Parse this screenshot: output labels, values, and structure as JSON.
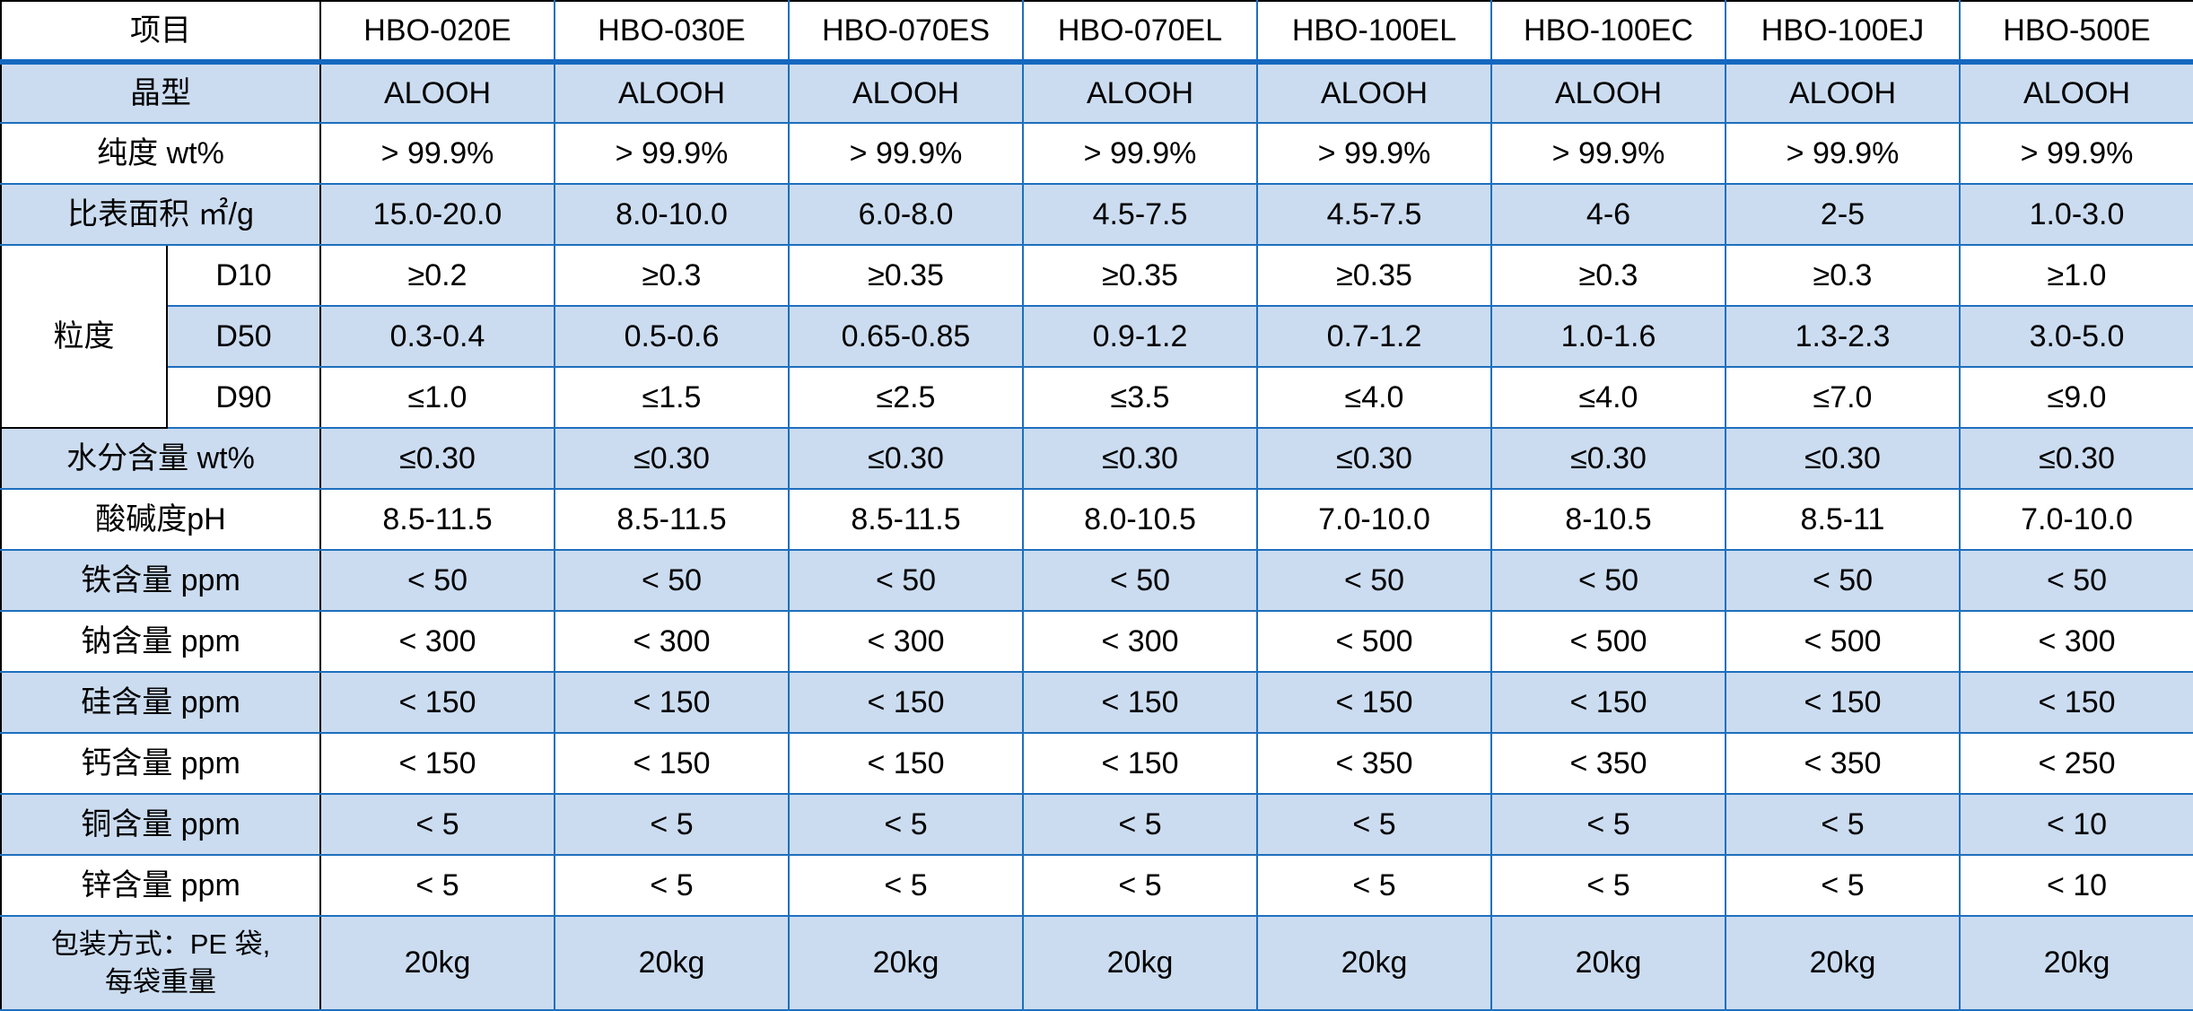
{
  "table": {
    "header": {
      "item_label": "项目",
      "columns": [
        "HBO-020E",
        "HBO-030E",
        "HBO-070ES",
        "HBO-070EL",
        "HBO-100EL",
        "HBO-100EC",
        "HBO-100EJ",
        "HBO-500E"
      ]
    },
    "rows": [
      {
        "label": "晶型",
        "values": [
          "ALOOH",
          "ALOOH",
          "ALOOH",
          "ALOOH",
          "ALOOH",
          "ALOOH",
          "ALOOH",
          "ALOOH"
        ]
      },
      {
        "label": "纯度 wt%",
        "values": [
          "> 99.9%",
          "> 99.9%",
          "> 99.9%",
          "> 99.9%",
          "> 99.9%",
          "> 99.9%",
          "> 99.9%",
          "> 99.9%"
        ]
      },
      {
        "label": "比表面积 ㎡/g",
        "values": [
          "15.0-20.0",
          "8.0-10.0",
          "6.0-8.0",
          "4.5-7.5",
          "4.5-7.5",
          "4-6",
          "2-5",
          "1.0-3.0"
        ]
      },
      {
        "group_label": "粒度",
        "sub_label": "D10",
        "values": [
          "≥0.2",
          "≥0.3",
          "≥0.35",
          "≥0.35",
          "≥0.35",
          "≥0.3",
          "≥0.3",
          "≥1.0"
        ]
      },
      {
        "sub_label": "D50",
        "values": [
          "0.3-0.4",
          "0.5-0.6",
          "0.65-0.85",
          "0.9-1.2",
          "0.7-1.2",
          "1.0-1.6",
          "1.3-2.3",
          "3.0-5.0"
        ]
      },
      {
        "sub_label": "D90",
        "values": [
          "≤1.0",
          "≤1.5",
          "≤2.5",
          "≤3.5",
          "≤4.0",
          "≤4.0",
          "≤7.0",
          "≤9.0"
        ]
      },
      {
        "label": "水分含量 wt%",
        "values": [
          "≤0.30",
          "≤0.30",
          "≤0.30",
          "≤0.30",
          "≤0.30",
          "≤0.30",
          "≤0.30",
          "≤0.30"
        ]
      },
      {
        "label": "酸碱度pH",
        "values": [
          "8.5-11.5",
          "8.5-11.5",
          "8.5-11.5",
          "8.0-10.5",
          "7.0-10.0",
          "8-10.5",
          "8.5-11",
          "7.0-10.0"
        ]
      },
      {
        "label": "铁含量 ppm",
        "values": [
          "< 50",
          "< 50",
          "< 50",
          "< 50",
          "< 50",
          "< 50",
          "< 50",
          "< 50"
        ]
      },
      {
        "label": "钠含量 ppm",
        "values": [
          "< 300",
          "< 300",
          "< 300",
          "< 300",
          "< 500",
          "< 500",
          "< 500",
          "< 300"
        ]
      },
      {
        "label": "硅含量 ppm",
        "values": [
          "< 150",
          "< 150",
          "< 150",
          "< 150",
          "< 150",
          "< 150",
          "< 150",
          "< 150"
        ]
      },
      {
        "label": "钙含量 ppm",
        "values": [
          "< 150",
          "< 150",
          "< 150",
          "< 150",
          "< 350",
          "< 350",
          "< 350",
          "< 250"
        ]
      },
      {
        "label": "铜含量 ppm",
        "values": [
          "< 5",
          "< 5",
          "< 5",
          "< 5",
          "< 5",
          "< 5",
          "< 5",
          "< 10"
        ]
      },
      {
        "label": "锌含量 ppm",
        "values": [
          "< 5",
          "< 5",
          "< 5",
          "< 5",
          "< 5",
          "< 5",
          "< 5",
          "< 10"
        ]
      },
      {
        "label": "包装方式：PE 袋,\n每袋重量",
        "values": [
          "20kg",
          "20kg",
          "20kg",
          "20kg",
          "20kg",
          "20kg",
          "20kg",
          "20kg"
        ]
      }
    ],
    "colors": {
      "row_fill": "#cbdcf0",
      "grid_blue": "#1e6fbe",
      "header_rule_blue": "#1568c0",
      "grid_black": "#000000",
      "text": "#000000",
      "background": "#ffffff"
    }
  }
}
